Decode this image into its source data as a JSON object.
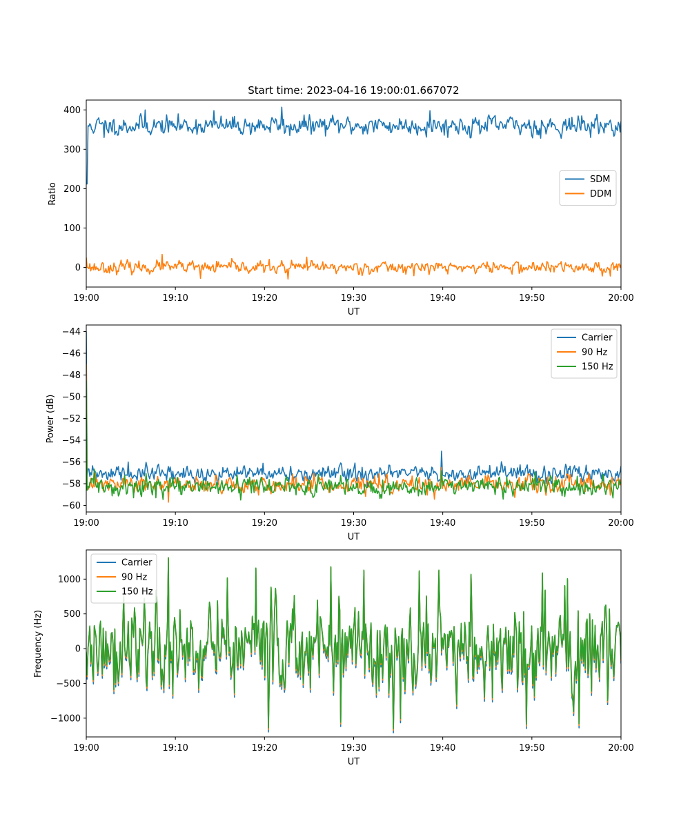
{
  "chart_data": [
    {
      "type": "line",
      "title": "Start time: 2023-04-16 19:00:01.667072",
      "xlabel": "UT",
      "ylabel": "Ratio",
      "x_ticks": [
        "19:00",
        "19:10",
        "19:20",
        "19:30",
        "19:40",
        "19:50",
        "20:00"
      ],
      "x_range_minutes": [
        0,
        60
      ],
      "ylim": [
        -50,
        425
      ],
      "y_ticks": [
        0,
        100,
        200,
        300,
        400
      ],
      "legend_position": "center-right",
      "series": [
        {
          "name": "SDM",
          "color": "#1f77b4",
          "base": 360,
          "noise": 14,
          "seed": 11,
          "start_values": [
            212,
            212,
            360
          ],
          "spikes": [
            [
              2.0,
              330
            ],
            [
              6.6,
              400
            ],
            [
              14.3,
              398
            ],
            [
              21.9,
              407
            ],
            [
              22.8,
              335
            ],
            [
              38.6,
              398
            ],
            [
              51.0,
              328
            ],
            [
              59.2,
              333
            ]
          ]
        },
        {
          "name": "DDM",
          "color": "#ff7f0e",
          "base": 0,
          "noise": 9,
          "seed": 23,
          "start_values": [
            25,
            0
          ],
          "spikes": [
            [
              8.5,
              33
            ],
            [
              12.8,
              -28
            ],
            [
              22.6,
              -30
            ],
            [
              24.7,
              26
            ],
            [
              58.8,
              -22
            ]
          ]
        }
      ]
    },
    {
      "type": "line",
      "title": "",
      "xlabel": "UT",
      "ylabel": "Power (dB)",
      "x_ticks": [
        "19:00",
        "19:10",
        "19:20",
        "19:30",
        "19:40",
        "19:50",
        "20:00"
      ],
      "x_range_minutes": [
        0,
        60
      ],
      "ylim": [
        -60.6,
        -43.4
      ],
      "y_ticks": [
        -60,
        -58,
        -56,
        -54,
        -52,
        -50,
        -48,
        -46,
        -44
      ],
      "legend_position": "top-right",
      "series": [
        {
          "name": "Carrier",
          "color": "#1f77b4",
          "base": -57.1,
          "noise": 0.45,
          "seed": 31,
          "start_values": [
            -44,
            -57.2
          ],
          "spikes": [
            [
              39.9,
              -55.0
            ],
            [
              30.2,
              -56.1
            ],
            [
              4.7,
              -56.0
            ]
          ]
        },
        {
          "name": "90 Hz",
          "color": "#ff7f0e",
          "base": -58.1,
          "noise": 0.45,
          "seed": 47,
          "start_values": [
            -47,
            -58.2
          ],
          "spikes": [
            [
              9.2,
              -59.7
            ],
            [
              39.9,
              -56.5
            ]
          ]
        },
        {
          "name": "150 Hz",
          "color": "#2ca02c",
          "base": -58.3,
          "noise": 0.5,
          "seed": 59,
          "start_values": [
            -48.5,
            -58.6
          ],
          "spikes": [
            [
              17.3,
              -59.5
            ],
            [
              39.9,
              -56.8
            ]
          ]
        }
      ]
    },
    {
      "type": "line",
      "title": "",
      "xlabel": "UT",
      "ylabel": "Frequency (Hz)",
      "x_ticks": [
        "19:00",
        "19:10",
        "19:20",
        "19:30",
        "19:40",
        "19:50",
        "20:00"
      ],
      "x_range_minutes": [
        0,
        60
      ],
      "ylim": [
        -1270,
        1420
      ],
      "y_ticks": [
        -1000,
        -500,
        0,
        500,
        1000
      ],
      "legend_position": "top-left",
      "series": [
        {
          "name": "Carrier",
          "color": "#1f77b4",
          "offset": -60
        },
        {
          "name": "90 Hz",
          "color": "#ff7f0e",
          "offset": -25
        },
        {
          "name": "150 Hz",
          "color": "#2ca02c",
          "offset": 0
        }
      ],
      "base_noise": 420,
      "seed": 77,
      "spikes": [
        [
          9.2,
          1310
        ],
        [
          15.8,
          1020
        ],
        [
          19.0,
          1160
        ],
        [
          28.5,
          -1060
        ],
        [
          31.2,
          1130
        ],
        [
          34.5,
          -1150
        ],
        [
          37.4,
          1120
        ],
        [
          39.6,
          1130
        ],
        [
          43.2,
          1070
        ],
        [
          51.2,
          1090
        ],
        [
          55.3,
          -1080
        ]
      ]
    }
  ]
}
